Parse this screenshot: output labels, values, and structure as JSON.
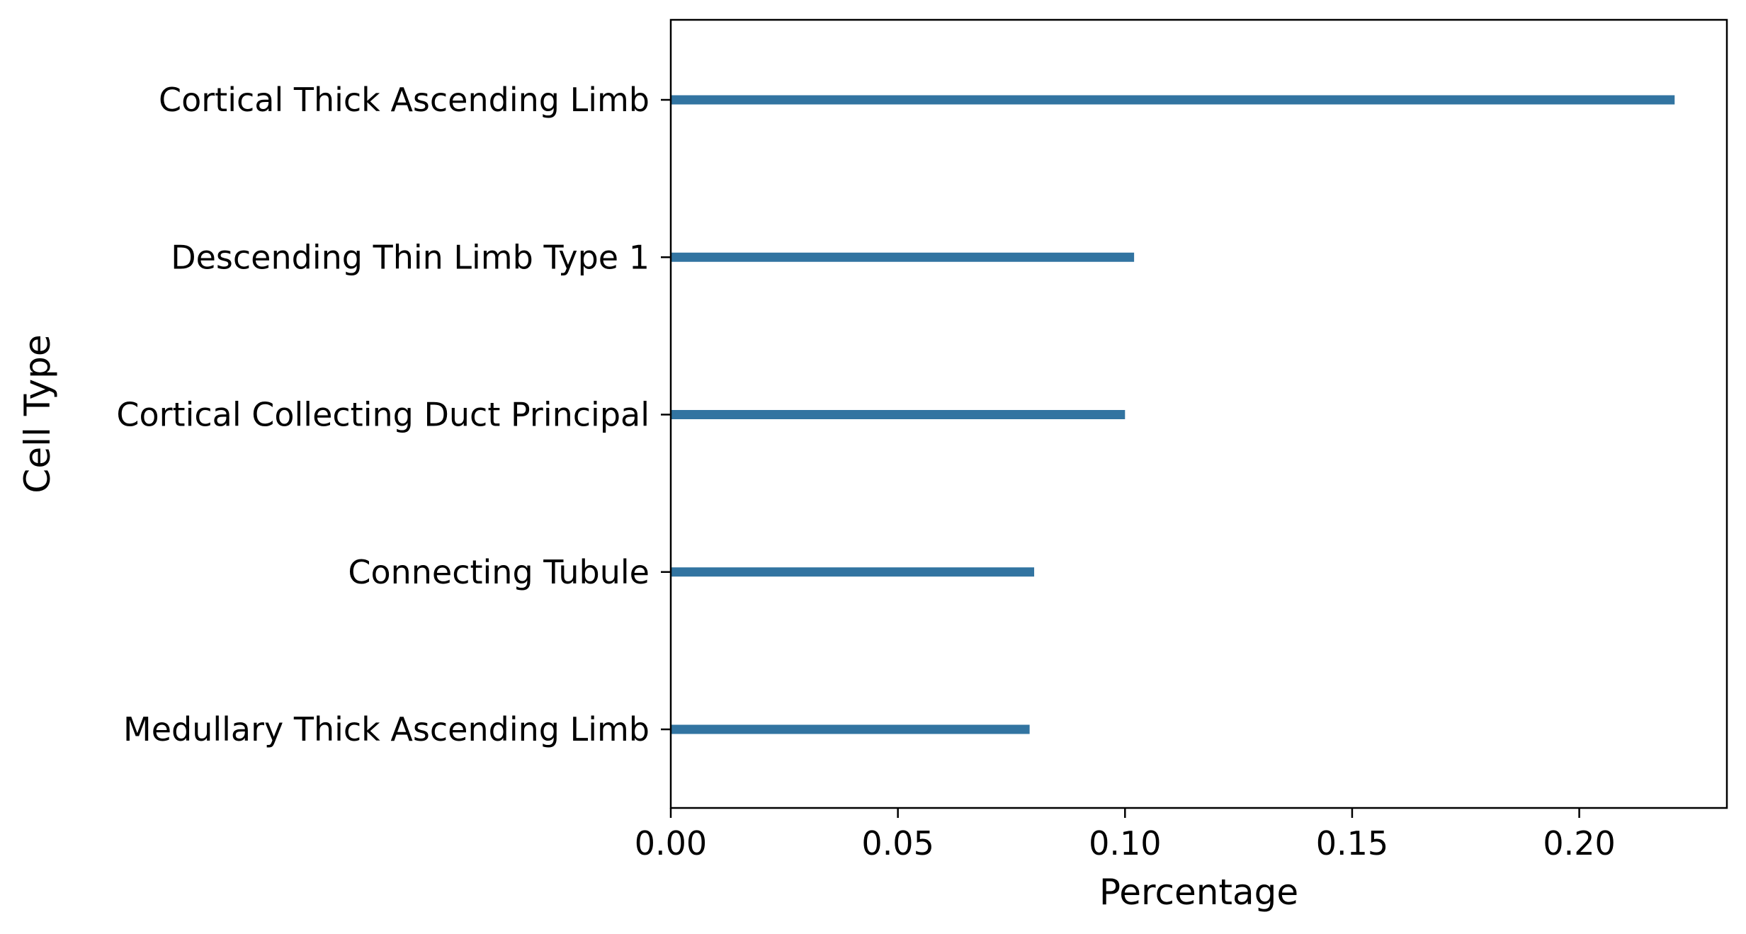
{
  "chart_data": {
    "type": "bar",
    "orientation": "horizontal",
    "categories": [
      "Cortical Thick Ascending Limb",
      "Descending Thin Limb Type 1",
      "Cortical Collecting Duct Principal",
      "Connecting Tubule",
      "Medullary Thick Ascending Limb"
    ],
    "values": [
      0.221,
      0.102,
      0.1,
      0.08,
      0.079
    ],
    "title": "",
    "xlabel": "Percentage",
    "ylabel": "Cell Type",
    "xlim": [
      0,
      0.2325
    ],
    "xticks": [
      0.0,
      0.05,
      0.1,
      0.15,
      0.2
    ],
    "xtick_labels": [
      "0.00",
      "0.05",
      "0.10",
      "0.15",
      "0.20"
    ],
    "grid": false,
    "legend": "none",
    "bar_color": "#3274a1"
  }
}
